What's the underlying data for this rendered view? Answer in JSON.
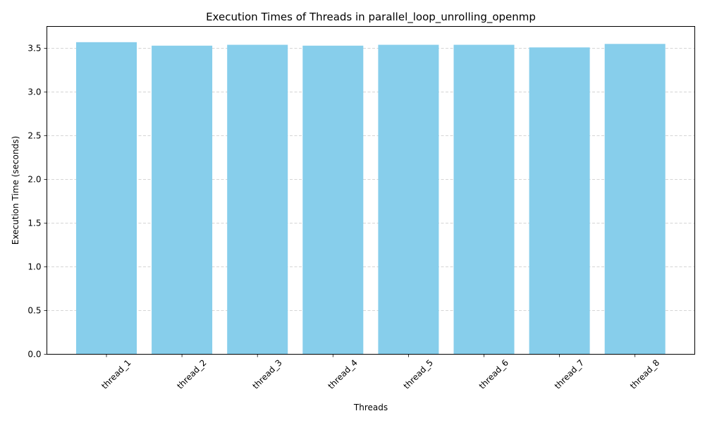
{
  "chart_data": {
    "type": "bar",
    "title": "Execution Times of Threads in parallel_loop_unrolling_openmp",
    "xlabel": "Threads",
    "ylabel": "Execution Time (seconds)",
    "categories": [
      "thread_1",
      "thread_2",
      "thread_3",
      "thread_4",
      "thread_5",
      "thread_6",
      "thread_7",
      "thread_8"
    ],
    "values": [
      3.57,
      3.53,
      3.54,
      3.53,
      3.54,
      3.54,
      3.51,
      3.55
    ],
    "ylim": [
      0,
      3.75
    ],
    "yticks": [
      0.0,
      0.5,
      1.0,
      1.5,
      2.0,
      2.5,
      3.0,
      3.5
    ],
    "ytick_labels": [
      "0.0",
      "0.5",
      "1.0",
      "1.5",
      "2.0",
      "2.5",
      "3.0",
      "3.5"
    ],
    "grid": "y-dashed",
    "bar_color": "#87ceeb",
    "grid_color": "#c8c8c8"
  }
}
